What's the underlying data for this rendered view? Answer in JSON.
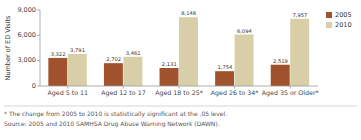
{
  "chart_data": {
    "type": "bar",
    "categories": [
      "Aged 5 to 11",
      "Aged 12 to 17",
      "Aged 18 to 25*",
      "Aged 26 to 34*",
      "Aged 35 or Older*"
    ],
    "series": [
      {
        "name": "2005",
        "color": "#A0522D",
        "values": [
          3322,
          2702,
          2131,
          1754,
          2519
        ],
        "value_labels": [
          "3,322",
          "2,702",
          "2,131",
          "1,754",
          "2,519"
        ]
      },
      {
        "name": "2010",
        "color": "#D8CFA8",
        "values": [
          3791,
          3461,
          8148,
          6094,
          7957
        ],
        "value_labels": [
          "3,791",
          "3,461",
          "8,148",
          "6,094",
          "7,957"
        ]
      }
    ],
    "ylabel": "Number of ED Visits",
    "ylim": [
      0,
      9000
    ],
    "yticks": [
      0,
      {
        "value": 3000,
        "label": "3,000"
      },
      {
        "value": 6000,
        "label": "6,000"
      },
      {
        "value": 9000,
        "label": "9,000"
      }
    ],
    "grid": false,
    "legend": "right",
    "data_labels": true,
    "annotations": [
      "* The change from 2005 to 2010 is statistically significant at the .05 level.",
      "Source: 2005 and 2010 SAMHSA Drug Abuse Warning Network (DAWN)."
    ]
  }
}
